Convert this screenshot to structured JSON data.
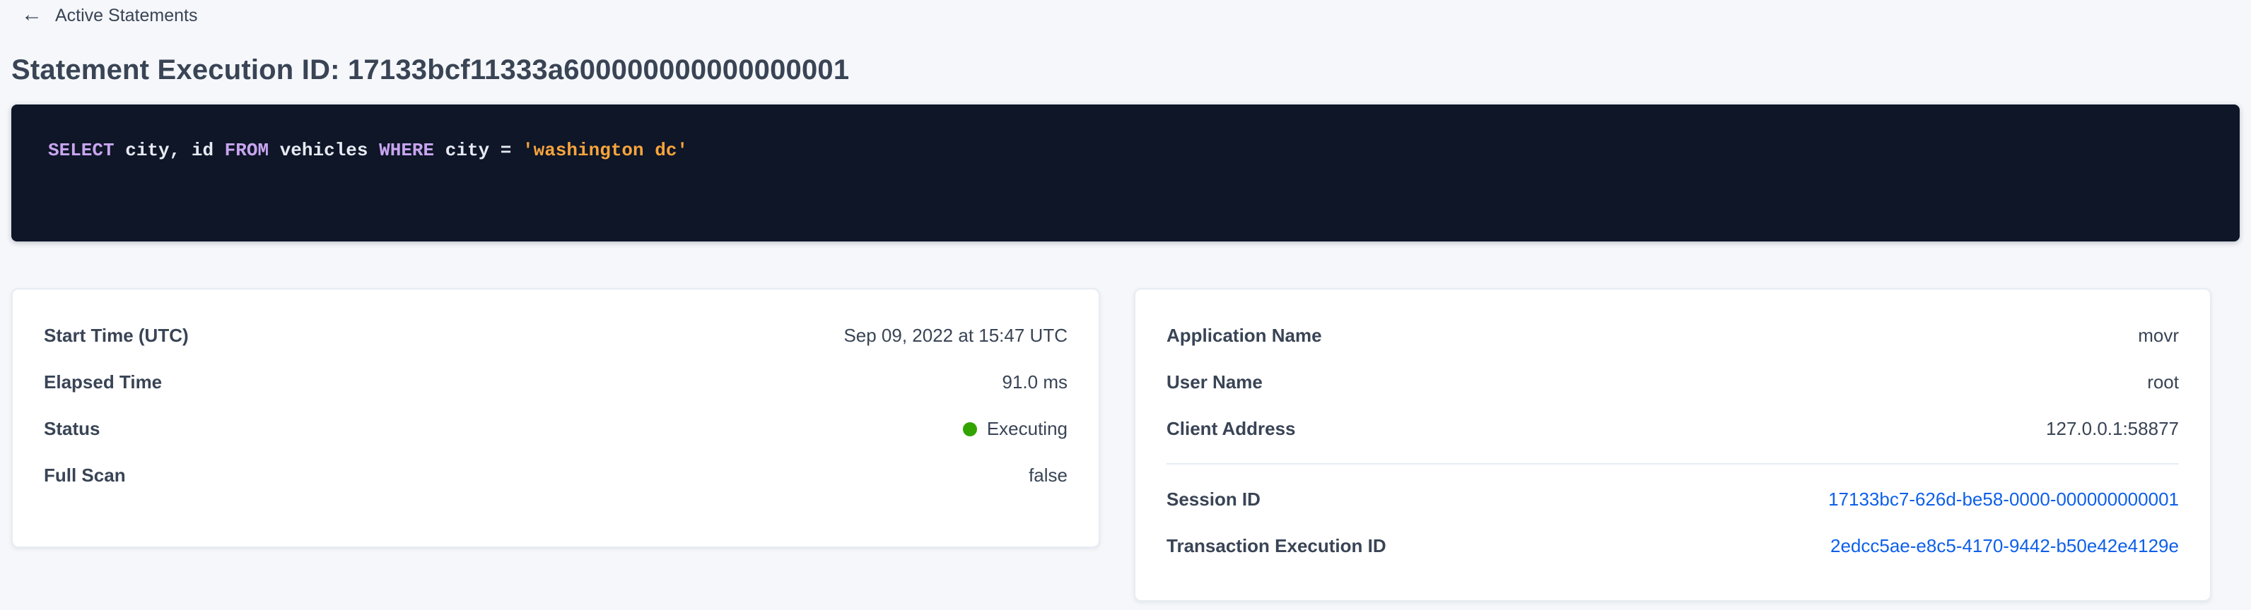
{
  "header": {
    "back_label": "Active Statements",
    "back_icon": "arrow-left-icon",
    "title": "Statement Execution ID: 17133bcf11333a600000000000000001"
  },
  "sql": {
    "full_text": "SELECT city, id FROM vehicles WHERE city = 'washington dc'",
    "tokens": [
      {
        "type": "keyword",
        "text": "SELECT"
      },
      {
        "type": "plain",
        "text": " city, id "
      },
      {
        "type": "keyword",
        "text": "FROM"
      },
      {
        "type": "plain",
        "text": " vehicles "
      },
      {
        "type": "keyword",
        "text": "WHERE"
      },
      {
        "type": "plain",
        "text": " city = "
      },
      {
        "type": "string",
        "text": "'washington dc'"
      }
    ]
  },
  "left_card": {
    "rows": [
      {
        "label": "Start Time (UTC)",
        "value": "Sep 09, 2022 at 15:47 UTC"
      },
      {
        "label": "Elapsed Time",
        "value": "91.0 ms"
      },
      {
        "label": "Status",
        "value": "Executing"
      },
      {
        "label": "Full Scan",
        "value": "false"
      }
    ],
    "status_dot_color": "#33a300"
  },
  "right_card": {
    "rows": [
      {
        "label": "Application Name",
        "value": "movr"
      },
      {
        "label": "User Name",
        "value": "root"
      },
      {
        "label": "Client Address",
        "value": "127.0.0.1:58877"
      }
    ],
    "link_rows": [
      {
        "label": "Session ID",
        "value": "17133bc7-626d-be58-0000-000000000001"
      },
      {
        "label": "Transaction Execution ID",
        "value": "2edcc5ae-e8c5-4170-9442-b50e42e4129e"
      }
    ]
  },
  "colors": {
    "page_bg": "#f5f7fa",
    "card_bg": "#ffffff",
    "text": "#394455",
    "sql_bg": "#0e1628",
    "sql_keyword": "#c8a5ef",
    "sql_plain": "#e7eaf2",
    "sql_string": "#f9a43c",
    "link_blue": "#0e5fea",
    "status_green": "#33a300"
  }
}
